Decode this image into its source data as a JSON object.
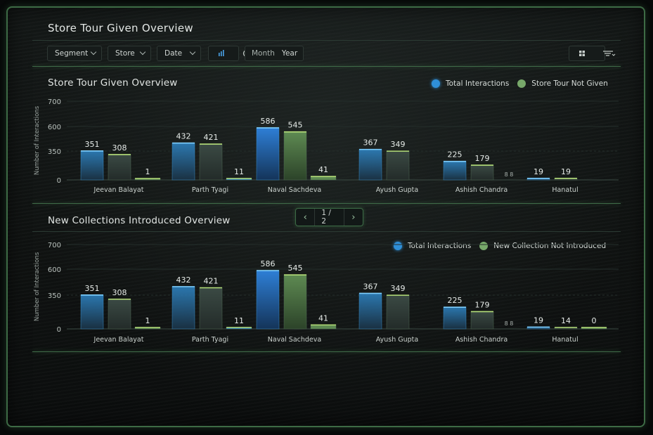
{
  "header": {
    "title": "Store Tour Given Overview"
  },
  "filters": {
    "segment_label": "Segment",
    "store_label": "Store",
    "date_label": "Date",
    "month_label": "Month",
    "year_label": "Year",
    "icons": [
      "bar-chart-icon",
      "pie-chart-icon",
      "grid-view-icon",
      "list-view-icon"
    ]
  },
  "colors": {
    "blue": "#2f8fd8",
    "green": "#77a86a",
    "accent": "#3f6b48"
  },
  "pagination": {
    "text": "1 / 2",
    "prev_icon": "chevron-left-icon",
    "next_icon": "chevron-right-icon"
  },
  "chart_data": [
    {
      "type": "bar",
      "title": "Store Tour Given Overview",
      "ylabel": "Number of Interactions",
      "yticks": [
        "700",
        "600",
        "350",
        "0"
      ],
      "ylim": [
        0,
        700
      ],
      "categories": [
        "Jeevan Balayat",
        "Parth Tyagi",
        "Naval Sachdeva",
        "Ayush Gupta",
        "Ashish Chandra",
        "Hanatul"
      ],
      "series": [
        {
          "name": "Total Interactions",
          "values": [
            351,
            432,
            586,
            367,
            225,
            19
          ]
        },
        {
          "name": "Store Tour Not Given",
          "values": [
            308,
            421,
            545,
            349,
            179,
            19
          ]
        },
        {
          "name": "",
          "values": [
            1,
            11,
            41,
            null,
            null,
            null
          ]
        }
      ],
      "value_labels": [
        [
          "351",
          "432",
          "586",
          "367",
          "225",
          "19"
        ],
        [
          "308",
          "421",
          "545",
          "349",
          "179",
          "19"
        ],
        [
          "1",
          "11",
          "41",
          "",
          "8 8",
          ""
        ]
      ]
    },
    {
      "type": "bar",
      "title": "New Collections Introduced Overview",
      "ylabel": "Number of Interactions",
      "yticks": [
        "700",
        "600",
        "350",
        "0"
      ],
      "ylim": [
        0,
        700
      ],
      "categories": [
        "Jeevan Balayat",
        "Parth Tyagi",
        "Naval Sachdeva",
        "Ayush Gupta",
        "Ashish Chandra",
        "Hanatul"
      ],
      "series": [
        {
          "name": "Total Interactions",
          "values": [
            351,
            432,
            586,
            367,
            225,
            19
          ]
        },
        {
          "name": "New Collection Not Introduced",
          "values": [
            308,
            421,
            545,
            349,
            179,
            14
          ]
        },
        {
          "name": "",
          "values": [
            1,
            11,
            41,
            null,
            null,
            0
          ]
        }
      ],
      "value_labels": [
        [
          "351",
          "432",
          "586",
          "367",
          "225",
          "19"
        ],
        [
          "308",
          "421",
          "545",
          "349",
          "179",
          "14"
        ],
        [
          "1",
          "11",
          "41",
          "",
          "8 8",
          "0"
        ]
      ]
    }
  ]
}
